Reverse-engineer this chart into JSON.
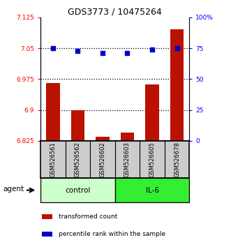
{
  "title": "GDS3773 / 10475264",
  "samples": [
    "GSM526561",
    "GSM526562",
    "GSM526602",
    "GSM526603",
    "GSM526605",
    "GSM526678"
  ],
  "bar_values": [
    6.965,
    6.9,
    6.835,
    6.845,
    6.962,
    7.095
  ],
  "dot_values": [
    75,
    73,
    71,
    71,
    74,
    75
  ],
  "ylim_left": [
    6.825,
    7.125
  ],
  "ylim_right": [
    0,
    100
  ],
  "yticks_left": [
    6.825,
    6.9,
    6.975,
    7.05,
    7.125
  ],
  "yticks_right": [
    0,
    25,
    50,
    75,
    100
  ],
  "ytick_labels_left": [
    "6.825",
    "6.9",
    "6.975",
    "7.05",
    "7.125"
  ],
  "ytick_labels_right": [
    "0",
    "25",
    "50",
    "75",
    "100%"
  ],
  "hlines": [
    6.9,
    6.975,
    7.05
  ],
  "bar_color": "#bb1100",
  "dot_color": "#0000cc",
  "bar_width": 0.55,
  "groups": [
    {
      "label": "control",
      "indices": [
        0,
        1,
        2
      ],
      "color": "#ccffcc"
    },
    {
      "label": "IL-6",
      "indices": [
        3,
        4,
        5
      ],
      "color": "#33ee33"
    }
  ],
  "group_row_label": "agent",
  "legend_items": [
    {
      "color": "#bb1100",
      "label": "transformed count"
    },
    {
      "color": "#0000cc",
      "label": "percentile rank within the sample"
    }
  ],
  "background_color": "#ffffff",
  "sample_box_color": "#cccccc"
}
